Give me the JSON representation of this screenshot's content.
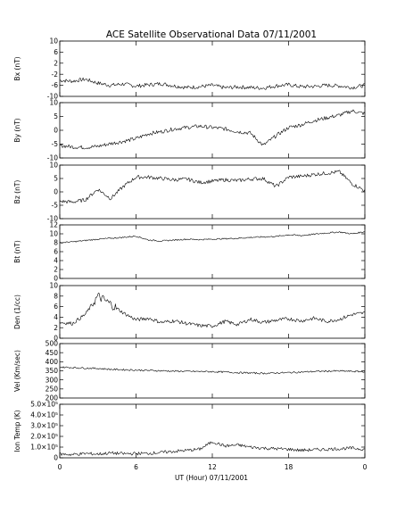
{
  "title": "ACE Satellite Observational Data   07/11/2001",
  "xlabel": "UT (Hour)  07/11/2001",
  "chart_data": [
    {
      "type": "line",
      "key": "bx",
      "ylabel": "Bx (nT)",
      "ylim": [
        -10,
        10
      ],
      "yticks": [
        {
          "v": 10,
          "l": "10"
        },
        {
          "v": 6,
          "l": "6"
        },
        {
          "v": 2,
          "l": "2"
        },
        {
          "v": -2,
          "l": "-2"
        },
        {
          "v": -6,
          "l": "-6"
        },
        {
          "v": -10,
          "l": "-10"
        }
      ],
      "x": [
        0,
        1,
        2,
        3,
        4,
        5,
        6,
        7,
        8,
        9,
        10,
        11,
        12,
        13,
        14,
        15,
        16,
        17,
        18,
        19,
        20,
        21,
        22,
        23,
        24
      ],
      "series": [
        {
          "values": [
            -4.2,
            -4.5,
            -3.8,
            -5.2,
            -6.0,
            -5.5,
            -6.3,
            -5.8,
            -5.4,
            -6.2,
            -6.8,
            -6.5,
            -6.0,
            -6.9,
            -6.6,
            -6.8,
            -7.0,
            -6.2,
            -5.8,
            -6.5,
            -6.4,
            -6.0,
            -6.2,
            -6.8,
            -6.0
          ]
        }
      ]
    },
    {
      "type": "line",
      "key": "by",
      "ylabel": "By (nT)",
      "ylim": [
        -10,
        10
      ],
      "yticks": [
        {
          "v": 10,
          "l": "10"
        },
        {
          "v": 5,
          "l": "5"
        },
        {
          "v": 0,
          "l": "0"
        },
        {
          "v": -5,
          "l": "-5"
        },
        {
          "v": -10,
          "l": "-10"
        }
      ],
      "x": [
        0,
        1,
        2,
        3,
        4,
        5,
        6,
        7,
        8,
        9,
        10,
        11,
        12,
        13,
        14,
        15,
        16,
        17,
        18,
        19,
        20,
        21,
        22,
        23,
        24
      ],
      "series": [
        {
          "values": [
            -5.5,
            -6.0,
            -6.2,
            -5.8,
            -4.8,
            -4.0,
            -3.0,
            -1.2,
            -0.5,
            0.5,
            1.0,
            1.5,
            1.0,
            0.5,
            -0.5,
            -1.0,
            -5.5,
            -2.0,
            1.0,
            2.0,
            3.5,
            4.5,
            5.5,
            7.0,
            6.0
          ]
        }
      ]
    },
    {
      "type": "line",
      "key": "bz",
      "ylabel": "Bz (nT)",
      "ylim": [
        -10,
        10
      ],
      "yticks": [
        {
          "v": 10,
          "l": "10"
        },
        {
          "v": 5,
          "l": "5"
        },
        {
          "v": 0,
          "l": "0"
        },
        {
          "v": -5,
          "l": "-5"
        },
        {
          "v": -10,
          "l": "-10"
        }
      ],
      "x": [
        0,
        1,
        2,
        3,
        4,
        5,
        6,
        7,
        8,
        9,
        10,
        11,
        12,
        13,
        14,
        15,
        16,
        17,
        18,
        19,
        20,
        21,
        22,
        23,
        24
      ],
      "series": [
        {
          "values": [
            -3.5,
            -3.8,
            -3.0,
            1.0,
            -2.5,
            2.0,
            5.5,
            5.5,
            5.0,
            4.5,
            4.8,
            3.5,
            4.0,
            4.5,
            4.2,
            4.8,
            5.0,
            2.0,
            5.5,
            5.8,
            6.5,
            7.0,
            7.5,
            3.0,
            0.5
          ]
        }
      ]
    },
    {
      "type": "line",
      "key": "bt",
      "ylabel": "Bt (nT)",
      "ylim": [
        0,
        12
      ],
      "yticks": [
        {
          "v": 12,
          "l": "12"
        },
        {
          "v": 10,
          "l": "10"
        },
        {
          "v": 8,
          "l": "8"
        },
        {
          "v": 6,
          "l": "6"
        },
        {
          "v": 4,
          "l": "4"
        },
        {
          "v": 2,
          "l": "2"
        },
        {
          "v": 0,
          "l": "0"
        }
      ],
      "x": [
        0,
        1,
        2,
        3,
        4,
        5,
        6,
        7,
        8,
        9,
        10,
        11,
        12,
        13,
        14,
        15,
        16,
        17,
        18,
        19,
        20,
        21,
        22,
        23,
        24
      ],
      "series": [
        {
          "values": [
            8.0,
            8.2,
            8.5,
            8.8,
            9.0,
            9.2,
            9.5,
            8.6,
            8.4,
            8.6,
            8.8,
            8.7,
            8.8,
            8.9,
            9.0,
            9.2,
            9.3,
            9.4,
            9.8,
            9.6,
            9.9,
            10.2,
            10.4,
            10.0,
            10.5
          ]
        }
      ]
    },
    {
      "type": "line",
      "key": "den",
      "ylabel": "Den (1/cc)",
      "ylim": [
        0,
        10
      ],
      "yticks": [
        {
          "v": 10,
          "l": "10"
        },
        {
          "v": 8,
          "l": "8"
        },
        {
          "v": 6,
          "l": "6"
        },
        {
          "v": 4,
          "l": "4"
        },
        {
          "v": 2,
          "l": "2"
        },
        {
          "v": 0,
          "l": "0"
        }
      ],
      "x": [
        0,
        1,
        2,
        3,
        4,
        5,
        6,
        7,
        8,
        9,
        10,
        11,
        12,
        13,
        14,
        15,
        16,
        17,
        18,
        19,
        20,
        21,
        22,
        23,
        24
      ],
      "series": [
        {
          "values": [
            3.0,
            2.8,
            4.5,
            8.0,
            6.5,
            4.8,
            3.5,
            3.8,
            3.0,
            3.3,
            2.8,
            2.4,
            2.3,
            3.2,
            2.6,
            3.6,
            3.0,
            3.4,
            3.7,
            3.3,
            3.8,
            3.2,
            3.6,
            4.5,
            4.8
          ]
        }
      ]
    },
    {
      "type": "line",
      "key": "vel",
      "ylabel": "Vel (Km/sec)",
      "ylim": [
        200,
        500
      ],
      "yticks": [
        {
          "v": 500,
          "l": "500"
        },
        {
          "v": 450,
          "l": "450"
        },
        {
          "v": 400,
          "l": "400"
        },
        {
          "v": 350,
          "l": "350"
        },
        {
          "v": 300,
          "l": "300"
        },
        {
          "v": 250,
          "l": "250"
        },
        {
          "v": 200,
          "l": "200"
        }
      ],
      "x": [
        0,
        1,
        2,
        3,
        4,
        5,
        6,
        7,
        8,
        9,
        10,
        11,
        12,
        13,
        14,
        15,
        16,
        17,
        18,
        19,
        20,
        21,
        22,
        23,
        24
      ],
      "series": [
        {
          "values": [
            370,
            368,
            365,
            363,
            358,
            356,
            354,
            352,
            350,
            348,
            347,
            346,
            345,
            343,
            340,
            338,
            336,
            338,
            340,
            343,
            346,
            348,
            349,
            347,
            345
          ]
        }
      ]
    },
    {
      "type": "line",
      "key": "temp",
      "ylabel": "Ion Temp (K)",
      "ylim": [
        0,
        500000
      ],
      "yticks": [
        {
          "v": 500000,
          "l": "5.0×10⁵"
        },
        {
          "v": 400000,
          "l": "4.0×10⁵"
        },
        {
          "v": 300000,
          "l": "3.0×10⁵"
        },
        {
          "v": 200000,
          "l": "2.0×10⁵"
        },
        {
          "v": 100000,
          "l": "1.0×10⁵"
        },
        {
          "v": 0,
          "l": "0"
        }
      ],
      "x": [
        0,
        1,
        2,
        3,
        4,
        5,
        6,
        7,
        8,
        9,
        10,
        11,
        12,
        13,
        14,
        15,
        16,
        17,
        18,
        19,
        20,
        21,
        22,
        23,
        24
      ],
      "series": [
        {
          "values": [
            35000,
            30000,
            40000,
            35000,
            45000,
            38000,
            40000,
            42000,
            50000,
            60000,
            70000,
            80000,
            150000,
            110000,
            120000,
            100000,
            90000,
            85000,
            80000,
            70000,
            75000,
            80000,
            85000,
            90000,
            80000
          ]
        }
      ]
    }
  ],
  "xaxis": {
    "range": [
      0,
      24
    ],
    "ticks": [
      {
        "v": 0,
        "l": "0"
      },
      {
        "v": 6,
        "l": "6"
      },
      {
        "v": 12,
        "l": "12"
      },
      {
        "v": 18,
        "l": "18"
      },
      {
        "v": 24,
        "l": "0"
      }
    ]
  }
}
